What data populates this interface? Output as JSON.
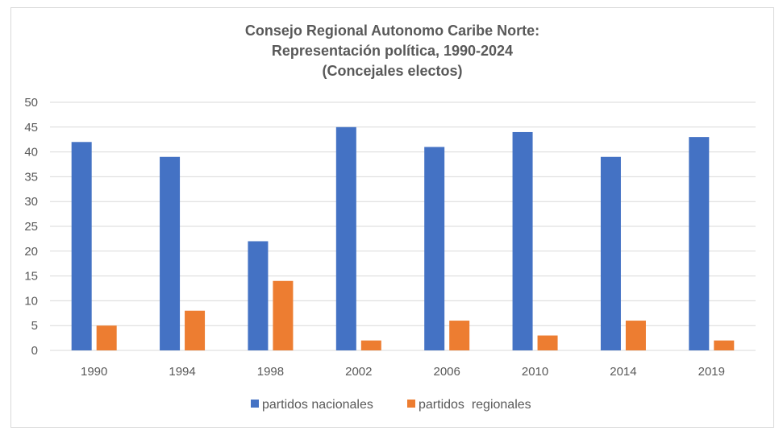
{
  "chart_data": {
    "type": "bar",
    "title_lines": [
      "Consejo Regional Autonomo Caribe Norte:",
      "Representación política, 1990-2024",
      "(Concejales electos)"
    ],
    "categories": [
      "1990",
      "1994",
      "1998",
      "2002",
      "2006",
      "2010",
      "2014",
      "2019"
    ],
    "series": [
      {
        "name": "partidos nacionales",
        "color": "#4472c4",
        "values": [
          42,
          39,
          22,
          45,
          41,
          44,
          39,
          43
        ]
      },
      {
        "name": "partidos  regionales",
        "color": "#ed7d31",
        "values": [
          5,
          8,
          14,
          2,
          6,
          3,
          6,
          2
        ]
      }
    ],
    "ylim": [
      0,
      50
    ],
    "yticks": [
      0,
      5,
      10,
      15,
      20,
      25,
      30,
      35,
      40,
      45,
      50
    ],
    "grid": true,
    "legend_position": "bottom",
    "xlabel": "",
    "ylabel": ""
  }
}
